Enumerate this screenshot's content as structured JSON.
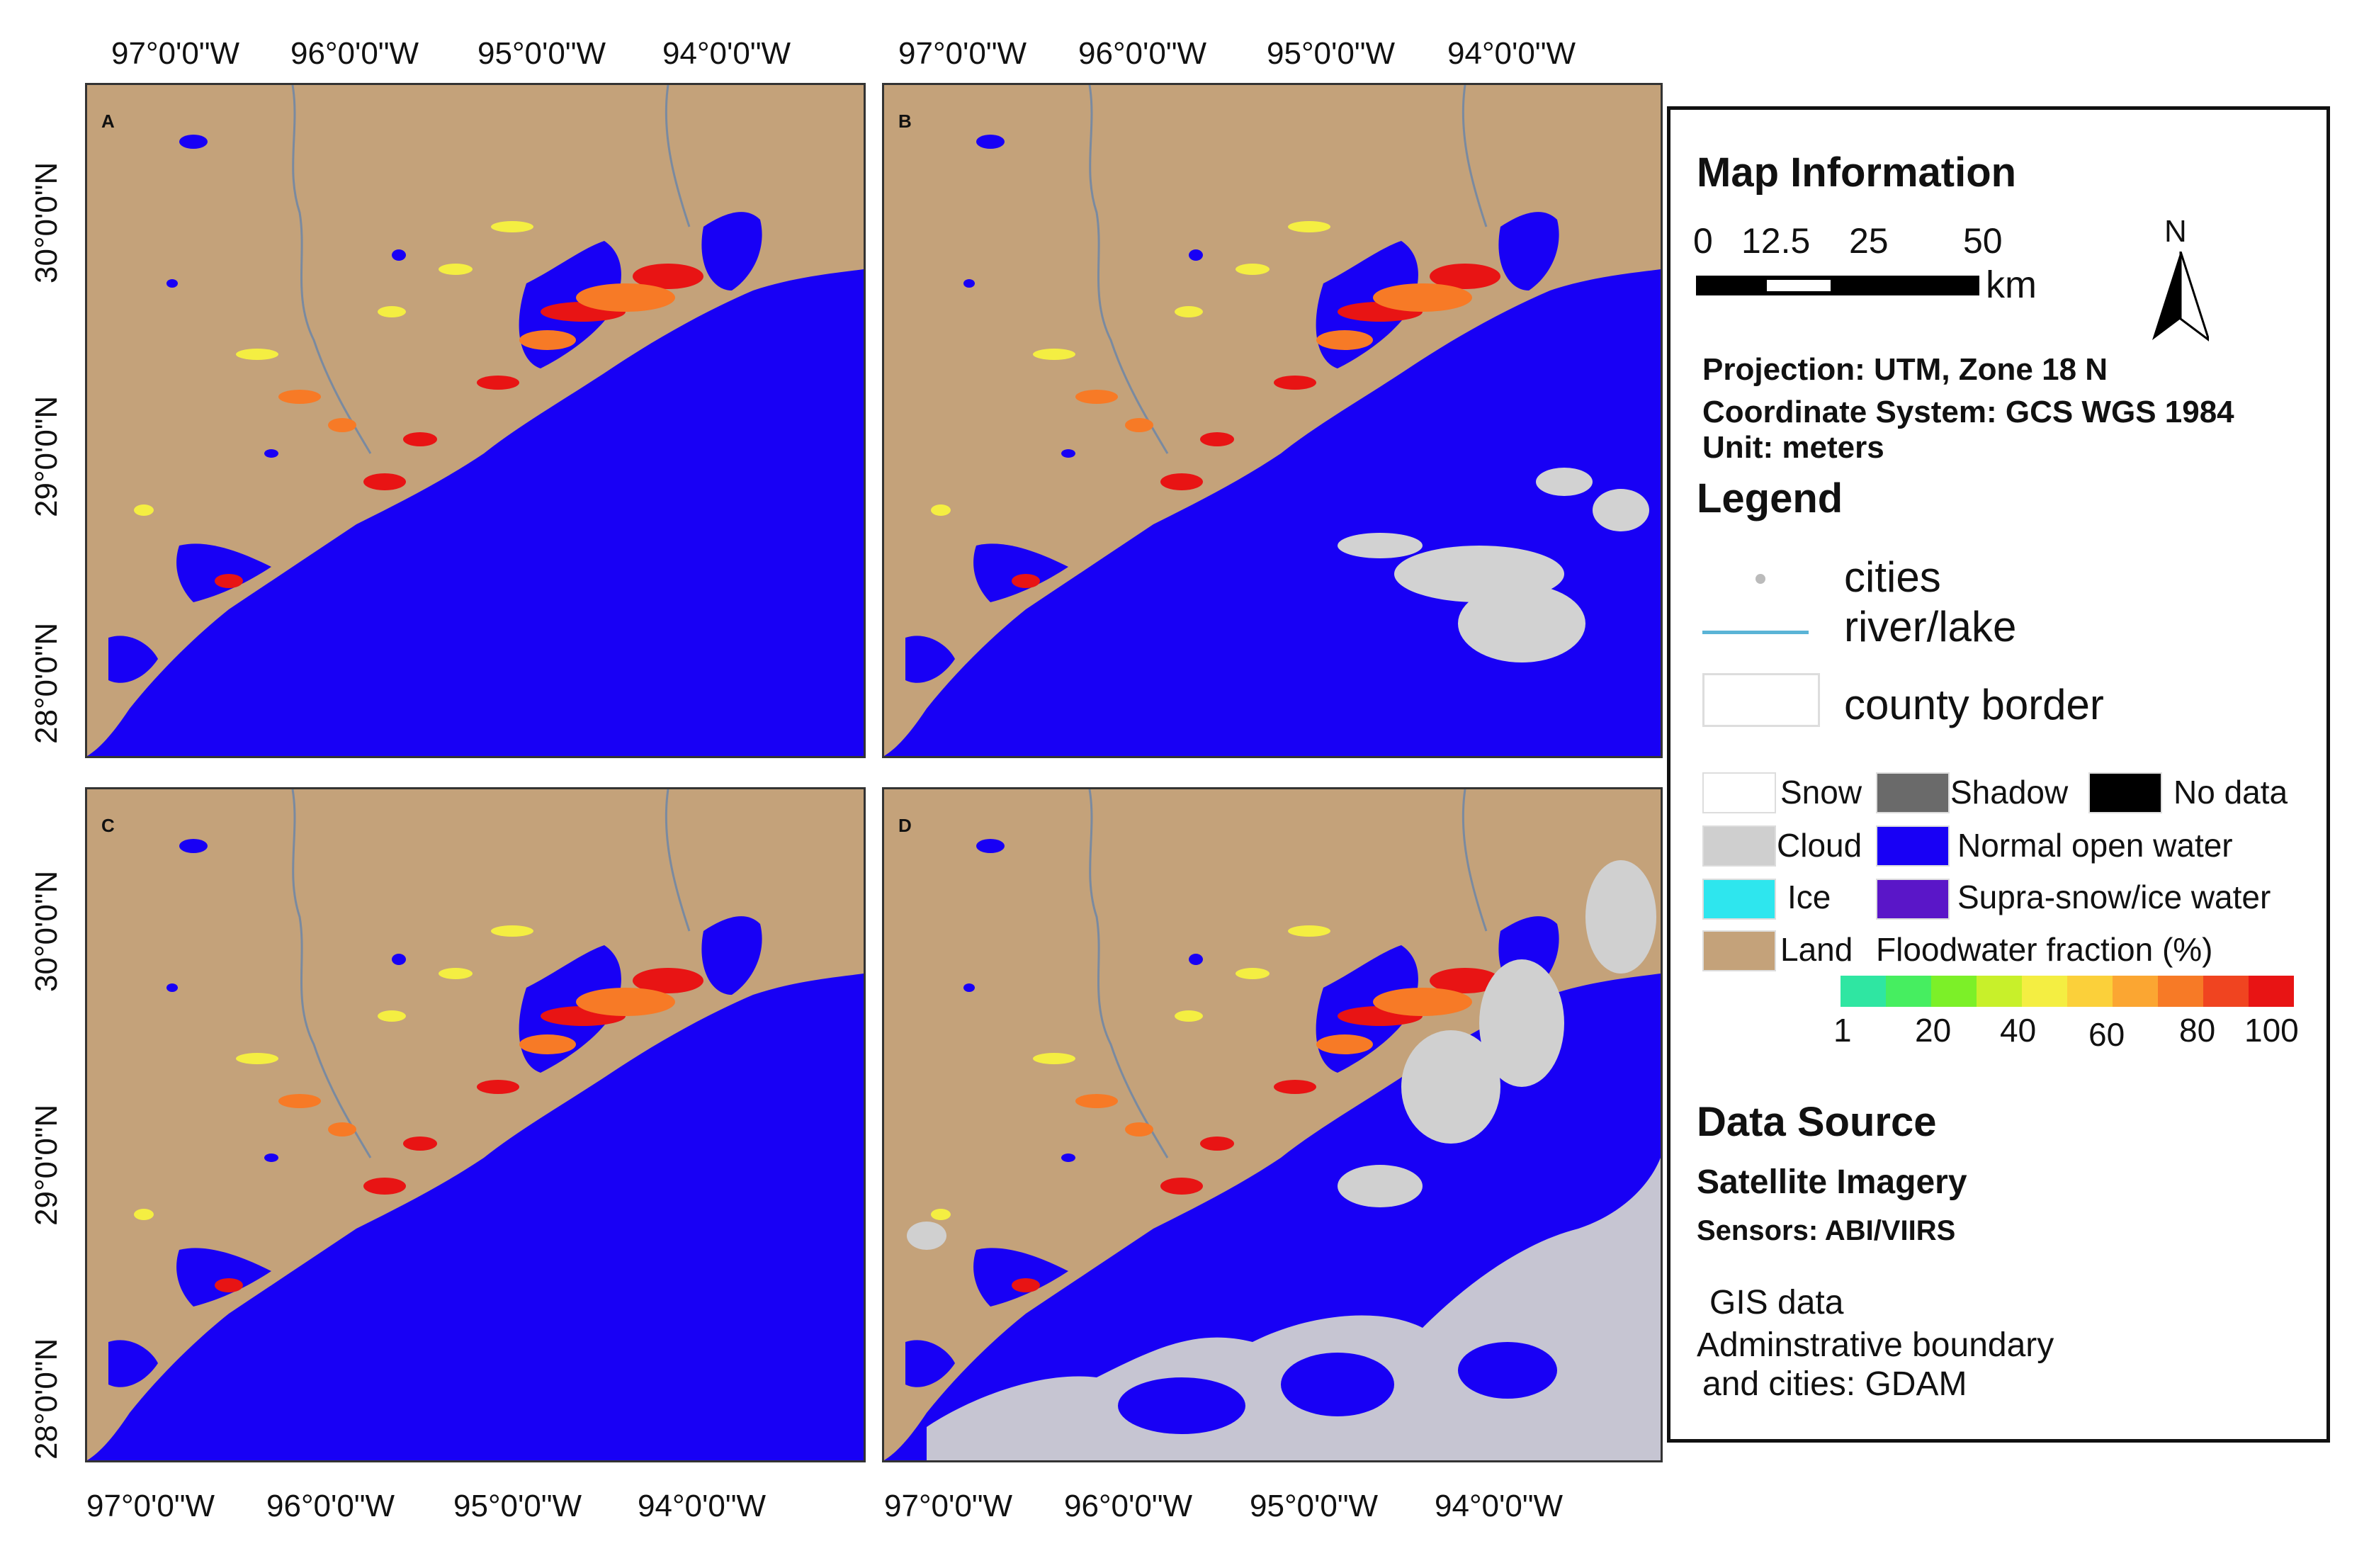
{
  "panels": [
    {
      "id": "a",
      "letter": "A"
    },
    {
      "id": "b",
      "letter": "B"
    },
    {
      "id": "c",
      "letter": "C"
    },
    {
      "id": "d",
      "letter": "D"
    }
  ],
  "axis": {
    "lon_labels": [
      "97°0'0\"W",
      "96°0'0\"W",
      "95°0'0\"W",
      "94°0'0\"W"
    ],
    "lat_labels": [
      "30°0'0\"N",
      "29°0'0\"N",
      "28°0'0\"N"
    ]
  },
  "map_information": {
    "title": "Map Information",
    "scale_numbers": [
      "0",
      "12.5",
      "25",
      "50"
    ],
    "scale_unit": "km",
    "north": "N",
    "projection": "Projection: UTM, Zone 18 N",
    "coordinate_system": "Coordinate System: GCS WGS 1984",
    "unit": "Unit: meters"
  },
  "legend": {
    "title": "Legend",
    "cities": "cities",
    "river_lake": "river/lake",
    "county_border": "county border",
    "classes": {
      "snow": "Snow",
      "shadow": "Shadow",
      "no_data": "No data",
      "cloud": "Cloud",
      "normal_open_water": "Normal open water",
      "ice": "Ice",
      "supra_water": "Supra-snow/ice water",
      "land": "Land",
      "floodwater_fraction": "Floodwater fraction (%)"
    },
    "colorbar_ticks": [
      "1",
      "20",
      "40",
      "60",
      "80",
      "100"
    ],
    "colors": {
      "snow": "#ffffff",
      "shadow": "#6a6a6a",
      "no_data": "#000000",
      "cloud": "#cfcfcf",
      "normal_open_water": "#1800f5",
      "ice": "#2ee6ee",
      "supra_water": "#5a16c8",
      "land": "#c4a27a",
      "flood_ramp": [
        "#2fe6a2",
        "#46ee60",
        "#7cf028",
        "#c8f02a",
        "#f4ee42",
        "#fbd03a",
        "#fba632",
        "#f77a26",
        "#f04420",
        "#e81414"
      ]
    }
  },
  "data_source": {
    "title": "Data Source",
    "satellite_title": "Satellite Imagery",
    "sensors": "Sensors: ABI/VIIRS",
    "gis_title": "GIS data",
    "gis_line1": "Adminstrative boundary",
    "gis_line2": "and cities:  GDAM"
  }
}
